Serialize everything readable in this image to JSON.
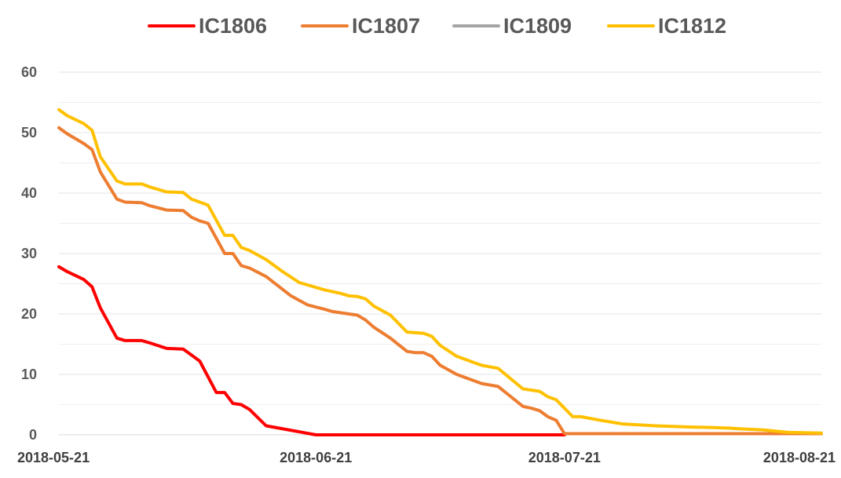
{
  "chart_data": {
    "type": "line",
    "title": "",
    "xlabel": "",
    "ylabel": "",
    "ylim": [
      0,
      60
    ],
    "yticks": [
      0,
      10,
      20,
      30,
      40,
      50,
      60
    ],
    "x_ticks": [
      "2018-05-21",
      "2018-06-21",
      "2018-07-21",
      "2018-08-21"
    ],
    "x_range": [
      "2018-05-21",
      "2018-08-21"
    ],
    "grid": "horizontal",
    "legend": "top",
    "series": [
      {
        "name": "IC1806",
        "color": "#ff0000",
        "x": [
          "2018-05-21",
          "2018-05-22",
          "2018-05-24",
          "2018-05-25",
          "2018-05-26",
          "2018-05-28",
          "2018-05-29",
          "2018-05-31",
          "2018-06-01",
          "2018-06-03",
          "2018-06-05",
          "2018-06-06",
          "2018-06-07",
          "2018-06-09",
          "2018-06-10",
          "2018-06-11",
          "2018-06-12",
          "2018-06-13",
          "2018-06-15",
          "2018-06-21",
          "2018-07-21"
        ],
        "values": [
          27.8,
          27.0,
          25.7,
          24.5,
          21.0,
          16.0,
          15.6,
          15.6,
          15.2,
          14.3,
          14.2,
          13.2,
          12.2,
          7.0,
          7.0,
          5.2,
          5.0,
          4.2,
          1.5,
          0,
          0
        ]
      },
      {
        "name": "IC1807",
        "color": "#ed7d31",
        "x": [
          "2018-05-21",
          "2018-05-22",
          "2018-05-24",
          "2018-05-25",
          "2018-05-26",
          "2018-05-28",
          "2018-05-29",
          "2018-05-31",
          "2018-06-01",
          "2018-06-03",
          "2018-06-05",
          "2018-06-06",
          "2018-06-07",
          "2018-06-08",
          "2018-06-10",
          "2018-06-11",
          "2018-06-12",
          "2018-06-13",
          "2018-06-15",
          "2018-06-18",
          "2018-06-20",
          "2018-06-22",
          "2018-06-23",
          "2018-06-25",
          "2018-06-26",
          "2018-06-27",
          "2018-06-28",
          "2018-06-30",
          "2018-07-02",
          "2018-07-03",
          "2018-07-04",
          "2018-07-05",
          "2018-07-06",
          "2018-07-08",
          "2018-07-10",
          "2018-07-11",
          "2018-07-13",
          "2018-07-16",
          "2018-07-17",
          "2018-07-18",
          "2018-07-19",
          "2018-07-20",
          "2018-07-21",
          "2018-07-25",
          "2018-08-21"
        ],
        "values": [
          50.8,
          49.8,
          48.2,
          47.2,
          43.5,
          39.0,
          38.5,
          38.4,
          37.9,
          37.2,
          37.1,
          36.0,
          35.4,
          35.0,
          30.0,
          30.0,
          28.0,
          27.6,
          26.2,
          23.0,
          21.5,
          20.8,
          20.4,
          20.0,
          19.8,
          19.0,
          17.8,
          16.0,
          13.8,
          13.6,
          13.6,
          13.0,
          11.5,
          10.0,
          9.0,
          8.5,
          8.0,
          4.7,
          4.4,
          4.0,
          3.0,
          2.4,
          0.2,
          0.2,
          0.2
        ]
      },
      {
        "name": "IC1809",
        "color": "#a5a5a5",
        "x": [],
        "values": []
      },
      {
        "name": "IC1812",
        "color": "#ffc000",
        "x": [
          "2018-05-21",
          "2018-05-22",
          "2018-05-24",
          "2018-05-25",
          "2018-05-26",
          "2018-05-28",
          "2018-05-29",
          "2018-05-31",
          "2018-06-01",
          "2018-06-03",
          "2018-06-05",
          "2018-06-06",
          "2018-06-07",
          "2018-06-08",
          "2018-06-10",
          "2018-06-11",
          "2018-06-12",
          "2018-06-13",
          "2018-06-15",
          "2018-06-17",
          "2018-06-19",
          "2018-06-22",
          "2018-06-24",
          "2018-06-25",
          "2018-06-26",
          "2018-06-27",
          "2018-06-28",
          "2018-06-30",
          "2018-07-02",
          "2018-07-03",
          "2018-07-04",
          "2018-07-05",
          "2018-07-06",
          "2018-07-08",
          "2018-07-10",
          "2018-07-11",
          "2018-07-13",
          "2018-07-16",
          "2018-07-17",
          "2018-07-18",
          "2018-07-19",
          "2018-07-20",
          "2018-07-22",
          "2018-07-23",
          "2018-07-25",
          "2018-07-28",
          "2018-08-01",
          "2018-08-05",
          "2018-08-08",
          "2018-08-10",
          "2018-08-11",
          "2018-08-14",
          "2018-08-17",
          "2018-08-21"
        ],
        "values": [
          53.8,
          52.8,
          51.5,
          50.4,
          46.0,
          42.0,
          41.5,
          41.5,
          41.0,
          40.2,
          40.1,
          39.0,
          38.5,
          38.0,
          33.0,
          33.0,
          31.0,
          30.5,
          29.0,
          27.0,
          25.2,
          24.0,
          23.4,
          23.0,
          22.9,
          22.5,
          21.3,
          19.8,
          17.0,
          16.9,
          16.8,
          16.3,
          14.8,
          13.0,
          12.0,
          11.5,
          11.0,
          7.6,
          7.4,
          7.2,
          6.3,
          5.8,
          3.0,
          3.0,
          2.5,
          1.8,
          1.5,
          1.3,
          1.2,
          1.1,
          1.0,
          0.8,
          0.4,
          0.3
        ]
      }
    ]
  }
}
